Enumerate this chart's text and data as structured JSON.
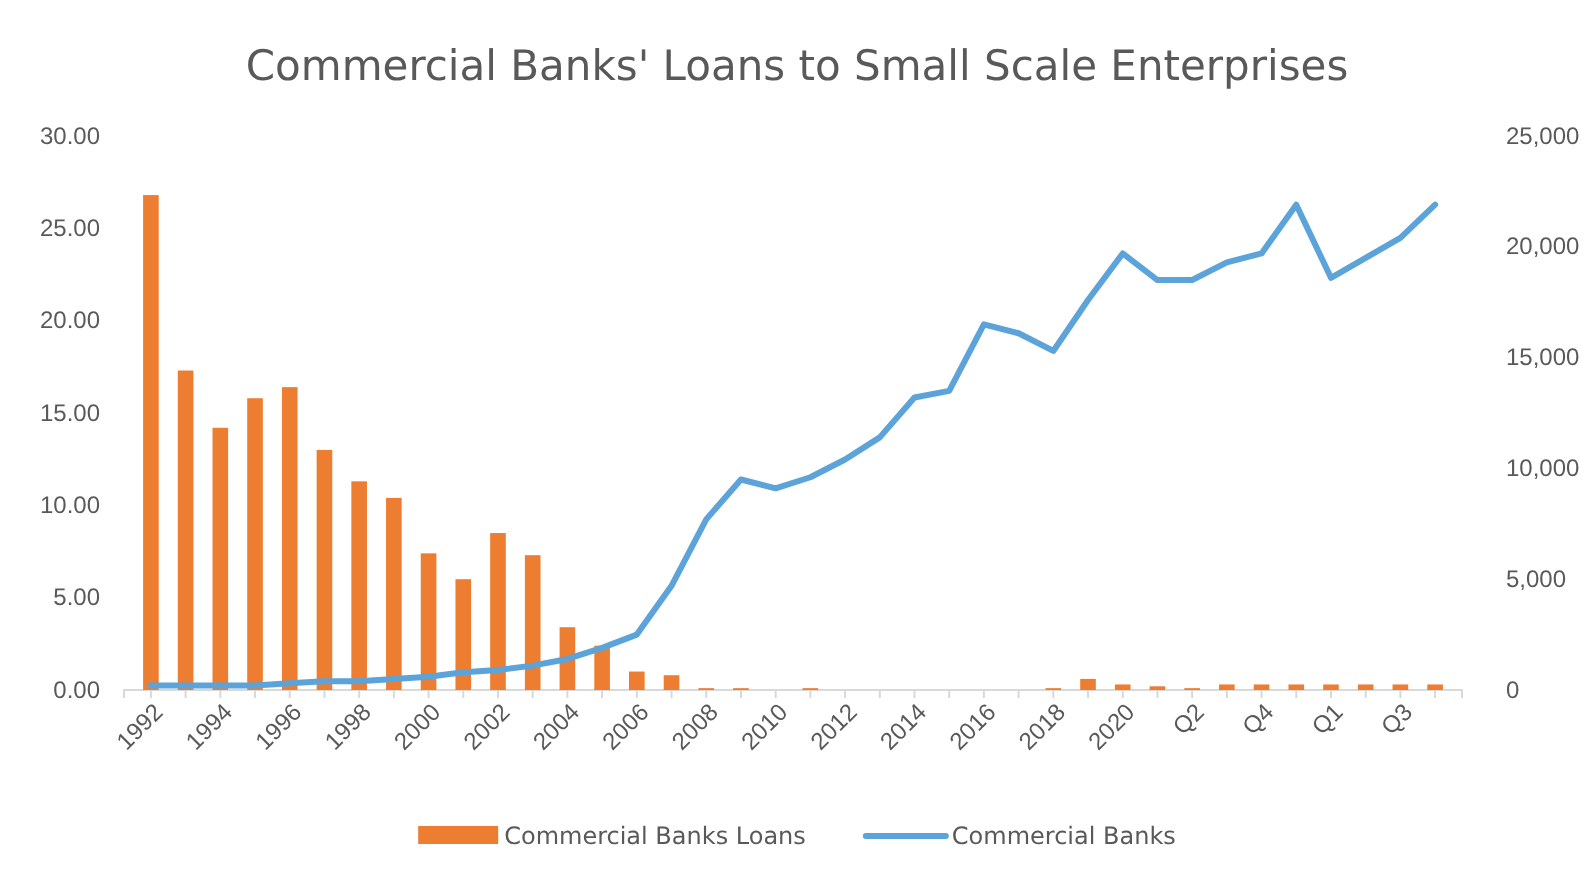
{
  "chart_data": {
    "type": "bar",
    "title": "Commercial Banks' Loans to Small Scale Enterprises",
    "categories": [
      "1992",
      null,
      "1994",
      null,
      "1996",
      null,
      "1998",
      null,
      "2000",
      null,
      "2002",
      null,
      "2004",
      null,
      "2006",
      null,
      "2008",
      null,
      "2010",
      null,
      "2012",
      null,
      "2014",
      null,
      "2016",
      null,
      "2018",
      null,
      "2020",
      null,
      "Q2",
      null,
      "Q4",
      null,
      "Q1",
      null,
      "Q3",
      null
    ],
    "series": [
      {
        "name": "Commercial Banks Loans",
        "color": "#ed7d31",
        "values": [
          26.8,
          17.3,
          14.2,
          15.8,
          16.4,
          13.0,
          11.3,
          10.4,
          7.4,
          6.0,
          8.5,
          7.3,
          3.4,
          2.4,
          1.0,
          0.8,
          0.1,
          0.1,
          0,
          0.1,
          0,
          0,
          0,
          0,
          0,
          0,
          0.1,
          0.6,
          0.3,
          0.2,
          0.1,
          0.3,
          0.3,
          0.3,
          0.3,
          0.3,
          0.3,
          0.3
        ]
      },
      {
        "name": "Commercial Banks",
        "type": "line",
        "axis": "y2",
        "color": "#5ba3d9",
        "values": [
          200,
          200,
          200,
          200,
          300,
          400,
          400,
          500,
          600,
          800,
          900,
          1100,
          1400,
          1900,
          2500,
          4700,
          7700,
          9500,
          9100,
          9600,
          10400,
          11400,
          13200,
          13500,
          16500,
          16100,
          15300,
          17600,
          19700,
          18500,
          18500,
          19300,
          19700,
          21900,
          18600,
          19500,
          20400,
          21900
        ]
      }
    ],
    "ylim": [
      0,
      30
    ],
    "yticks": [
      {
        "value": 0,
        "label": "0.00"
      },
      {
        "value": 5,
        "label": "5.00"
      },
      {
        "value": 10,
        "label": "10.00"
      },
      {
        "value": 15,
        "label": "15.00"
      },
      {
        "value": 20,
        "label": "20.00"
      },
      {
        "value": 25,
        "label": "25.00"
      },
      {
        "value": 30,
        "label": "30.00"
      }
    ],
    "y2lim": [
      0,
      25000
    ],
    "y2ticks": [
      0,
      {
        "value": 5000,
        "label": "5,000"
      },
      {
        "value": 10000,
        "label": "10,000"
      },
      {
        "value": 15000,
        "label": "15,000"
      },
      {
        "value": 20000,
        "label": "20,000"
      },
      {
        "value": 25000,
        "label": "25,000"
      }
    ],
    "legend": "bottom",
    "line_style": "solid",
    "marker": "none"
  }
}
